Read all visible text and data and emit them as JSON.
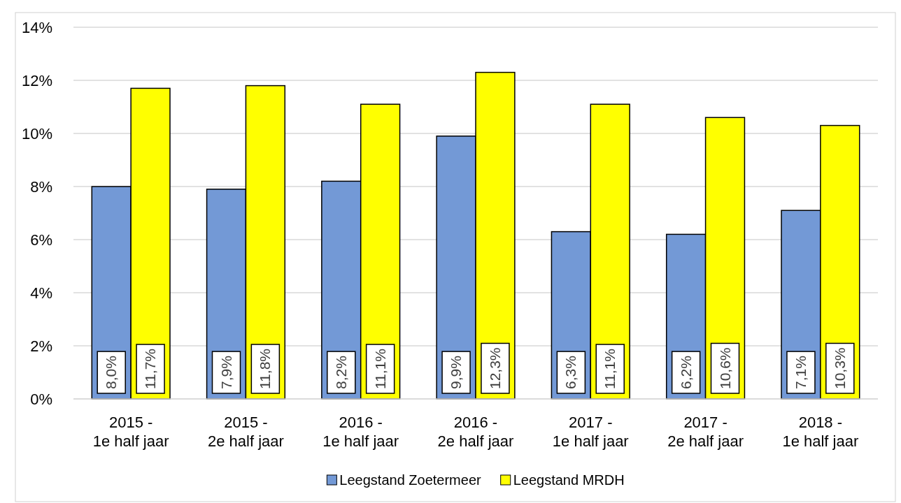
{
  "chart_data": {
    "type": "bar",
    "categories": [
      "2015 -\n1e half jaar",
      "2015 -\n2e half jaar",
      "2016 -\n1e half jaar",
      "2016 -\n2e half jaar",
      "2017 -\n1e half jaar",
      "2017 -\n2e half jaar",
      "2018 -\n1e half jaar"
    ],
    "series": [
      {
        "name": "Leegstand Zoetermeer",
        "color": "#7399d6",
        "values": [
          8.0,
          7.9,
          8.2,
          9.9,
          6.3,
          6.2,
          7.1
        ],
        "value_labels": [
          "8,0%",
          "7,9%",
          "8,2%",
          "9,9%",
          "6,3%",
          "6,2%",
          "7,1%"
        ]
      },
      {
        "name": "Leegstand MRDH",
        "color": "#ffff00",
        "values": [
          11.7,
          11.8,
          11.1,
          12.3,
          11.1,
          10.6,
          10.3
        ],
        "value_labels": [
          "11,7%",
          "11,8%",
          "11,1%",
          "12,3%",
          "11,1%",
          "10,6%",
          "10,3%"
        ]
      }
    ],
    "ylim": [
      0,
      14
    ],
    "yticks": [
      {
        "value": 0,
        "label": "0%"
      },
      {
        "value": 2,
        "label": "2%"
      },
      {
        "value": 4,
        "label": "4%"
      },
      {
        "value": 6,
        "label": "6%"
      },
      {
        "value": 8,
        "label": "8%"
      },
      {
        "value": 10,
        "label": "10%"
      },
      {
        "value": 12,
        "label": "12%"
      },
      {
        "value": 14,
        "label": "14%"
      }
    ],
    "grid": "y",
    "legend": "bottom"
  }
}
